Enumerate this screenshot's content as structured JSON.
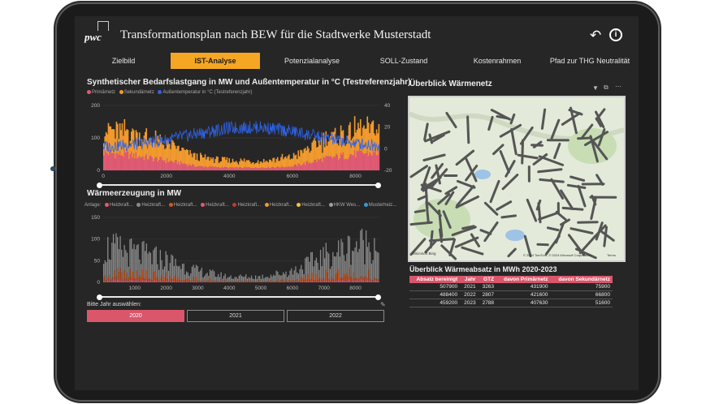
{
  "header": {
    "logo": "pwc",
    "title": "Transformationsplan nach BEW für die Stadtwerke Musterstadt",
    "back_icon": "back-arrow-icon",
    "info_icon": "info-icon",
    "info_glyph": "i"
  },
  "tabs": [
    {
      "label": "Zielbild",
      "active": false
    },
    {
      "label": "IST-Analyse",
      "active": true
    },
    {
      "label": "Potenzialanalyse",
      "active": false
    },
    {
      "label": "SOLL-Zustand",
      "active": false
    },
    {
      "label": "Kostenrahmen",
      "active": false
    },
    {
      "label": "Pfad zur THG Neutralität",
      "active": false
    }
  ],
  "colors": {
    "accent": "#f5a623",
    "primary": "#e05a74",
    "secondary": "#f29a2e",
    "temperature": "#2e63e8",
    "map_network": "#555555"
  },
  "chart_data": [
    {
      "type": "area",
      "title": "Synthetischer Bedarfslastgang in MW und Außentemperatur in °C (Testreferenzjahr)",
      "legend": [
        "Primärnetz",
        "Sekundärnetz",
        "Außentemperatur in °C (Testreferenzjahr)"
      ],
      "x_ticks": [
        "0",
        "2000",
        "4000",
        "6000",
        "8000"
      ],
      "y_left_ticks": [
        "200",
        "100",
        "0"
      ],
      "y_right_ticks": [
        "40",
        "20",
        "0",
        "-20"
      ],
      "xlim": [
        0,
        8760
      ],
      "ylim_left": [
        0,
        200
      ],
      "ylim_right": [
        -20,
        40
      ],
      "series": [
        {
          "name": "Primärnetz",
          "x": [
            0,
            1000,
            2000,
            3000,
            4000,
            5000,
            6000,
            7000,
            8000,
            8760
          ],
          "values": [
            55,
            45,
            30,
            12,
            8,
            8,
            12,
            35,
            50,
            55
          ]
        },
        {
          "name": "Sekundärnetz",
          "x": [
            0,
            1000,
            2000,
            3000,
            4000,
            5000,
            6000,
            7000,
            8000,
            8760
          ],
          "values": [
            75,
            70,
            55,
            30,
            22,
            22,
            30,
            60,
            75,
            80
          ]
        },
        {
          "name": "Außentemperatur in °C (Testreferenzjahr)",
          "x": [
            0,
            1000,
            2000,
            3000,
            4000,
            5000,
            6000,
            7000,
            8000,
            8760
          ],
          "values": [
            2,
            4,
            8,
            14,
            19,
            20,
            16,
            10,
            5,
            3
          ]
        }
      ]
    },
    {
      "type": "bar",
      "title": "Wärmeerzeugung in MW",
      "legend_label": "Anlage",
      "legend": [
        "Heizkraft...",
        "Heizkraft...",
        "Heizkraft...",
        "Heizkraft...",
        "Heizkraft...",
        "Heizkraft...",
        "Heizkraft...",
        "HKW Wes...",
        "Musterheiz..."
      ],
      "x_ticks": [
        "1000",
        "2000",
        "3000",
        "4000",
        "5000",
        "6000",
        "7000",
        "8000"
      ],
      "y_ticks": [
        "150",
        "100",
        "50",
        "0"
      ],
      "xlim": [
        0,
        8760
      ],
      "ylim": [
        0,
        150
      ],
      "series": [
        {
          "name": "Gesamt",
          "x": [
            0,
            1000,
            2000,
            3000,
            4000,
            5000,
            6000,
            7000,
            8000,
            8760
          ],
          "values": [
            95,
            80,
            60,
            30,
            15,
            15,
            30,
            70,
            100,
            110
          ]
        }
      ]
    }
  ],
  "year_selector": {
    "label": "Bitte Jahr auswählen:",
    "clear_icon": "eraser-icon",
    "years": [
      {
        "label": "2020",
        "selected": true
      },
      {
        "label": "2021",
        "selected": false
      },
      {
        "label": "2022",
        "selected": false
      }
    ]
  },
  "map": {
    "title": "Überblick Wärmenetz",
    "filter_icon": "filter-icon",
    "expand_icon": "expand-icon",
    "more_icon": "more-icon",
    "attribution_left": "Microsoft Bing",
    "attribution_right": "© 2024 TomTom, © 2024 Microsoft Corporation",
    "terms": "Terms"
  },
  "sales_table": {
    "title": "Überblick Wärmeabsatz in MWh 2020-2023",
    "columns": [
      "Absatz bereinigt",
      "Jahr",
      "GTZ",
      "davon Primärnetz",
      "davon Sekundärnetz"
    ],
    "rows": [
      [
        "507900",
        "2021",
        "3263",
        "431900",
        "75900"
      ],
      [
        "488400",
        "2022",
        "2807",
        "421600",
        "66800"
      ],
      [
        "459200",
        "2023",
        "2788",
        "407630",
        "51600"
      ]
    ]
  }
}
